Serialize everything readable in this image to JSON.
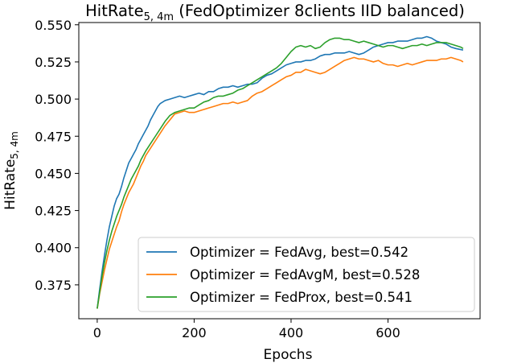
{
  "chart_data": {
    "type": "line",
    "title": {
      "prefix": "HitRate",
      "subscript": "5, 4m",
      "suffix": " (FedOptimizer 8clients IID balanced)"
    },
    "xlabel": "Epochs",
    "ylabel": {
      "base": "HitRate",
      "subscript": "5, 4m"
    },
    "xlim": [
      -38,
      790
    ],
    "ylim": [
      0.3522,
      0.5515
    ],
    "xticks": [
      0,
      200,
      400,
      600
    ],
    "xtick_labels": [
      "0",
      "200",
      "400",
      "600"
    ],
    "yticks": [
      0.375,
      0.4,
      0.425,
      0.45,
      0.475,
      0.5,
      0.525,
      0.55
    ],
    "ytick_labels": [
      "0.375",
      "0.400",
      "0.425",
      "0.450",
      "0.475",
      "0.500",
      "0.525",
      "0.550"
    ],
    "grid": false,
    "legend_position": "lower-right",
    "series": [
      {
        "name": "Optimizer = FedAvg, best=0.542",
        "color": "#1f77b4",
        "points": [
          [
            0,
            0.359
          ],
          [
            5,
            0.372
          ],
          [
            10,
            0.384
          ],
          [
            15,
            0.395
          ],
          [
            20,
            0.405
          ],
          [
            25,
            0.414
          ],
          [
            30,
            0.421
          ],
          [
            35,
            0.428
          ],
          [
            40,
            0.433
          ],
          [
            45,
            0.436
          ],
          [
            50,
            0.441
          ],
          [
            55,
            0.447
          ],
          [
            60,
            0.452
          ],
          [
            65,
            0.457
          ],
          [
            70,
            0.46
          ],
          [
            75,
            0.463
          ],
          [
            80,
            0.466
          ],
          [
            85,
            0.47
          ],
          [
            90,
            0.473
          ],
          [
            95,
            0.476
          ],
          [
            100,
            0.479
          ],
          [
            105,
            0.482
          ],
          [
            110,
            0.486
          ],
          [
            115,
            0.489
          ],
          [
            120,
            0.492
          ],
          [
            125,
            0.495
          ],
          [
            130,
            0.497
          ],
          [
            135,
            0.498
          ],
          [
            140,
            0.499
          ],
          [
            150,
            0.5
          ],
          [
            160,
            0.501
          ],
          [
            170,
            0.502
          ],
          [
            180,
            0.501
          ],
          [
            190,
            0.502
          ],
          [
            200,
            0.503
          ],
          [
            210,
            0.504
          ],
          [
            220,
            0.503
          ],
          [
            230,
            0.505
          ],
          [
            240,
            0.505
          ],
          [
            250,
            0.507
          ],
          [
            260,
            0.508
          ],
          [
            270,
            0.508
          ],
          [
            280,
            0.509
          ],
          [
            290,
            0.508
          ],
          [
            300,
            0.509
          ],
          [
            310,
            0.51
          ],
          [
            320,
            0.51
          ],
          [
            330,
            0.511
          ],
          [
            340,
            0.514
          ],
          [
            350,
            0.516
          ],
          [
            360,
            0.517
          ],
          [
            370,
            0.519
          ],
          [
            380,
            0.521
          ],
          [
            390,
            0.523
          ],
          [
            400,
            0.524
          ],
          [
            410,
            0.525
          ],
          [
            420,
            0.525
          ],
          [
            430,
            0.526
          ],
          [
            440,
            0.526
          ],
          [
            450,
            0.527
          ],
          [
            460,
            0.529
          ],
          [
            470,
            0.53
          ],
          [
            480,
            0.53
          ],
          [
            490,
            0.531
          ],
          [
            500,
            0.531
          ],
          [
            510,
            0.531
          ],
          [
            520,
            0.532
          ],
          [
            530,
            0.531
          ],
          [
            540,
            0.53
          ],
          [
            550,
            0.531
          ],
          [
            560,
            0.533
          ],
          [
            570,
            0.535
          ],
          [
            580,
            0.536
          ],
          [
            590,
            0.537
          ],
          [
            600,
            0.538
          ],
          [
            610,
            0.538
          ],
          [
            620,
            0.539
          ],
          [
            630,
            0.539
          ],
          [
            640,
            0.539
          ],
          [
            650,
            0.54
          ],
          [
            660,
            0.541
          ],
          [
            670,
            0.541
          ],
          [
            680,
            0.542
          ],
          [
            690,
            0.541
          ],
          [
            700,
            0.539
          ],
          [
            710,
            0.538
          ],
          [
            720,
            0.537
          ],
          [
            730,
            0.535
          ],
          [
            740,
            0.534
          ],
          [
            755,
            0.533
          ]
        ]
      },
      {
        "name": "Optimizer = FedAvgM, best=0.528",
        "color": "#ff7f0e",
        "points": [
          [
            0,
            0.359
          ],
          [
            5,
            0.369
          ],
          [
            10,
            0.377
          ],
          [
            15,
            0.385
          ],
          [
            20,
            0.392
          ],
          [
            25,
            0.399
          ],
          [
            30,
            0.404
          ],
          [
            35,
            0.409
          ],
          [
            40,
            0.414
          ],
          [
            45,
            0.418
          ],
          [
            50,
            0.424
          ],
          [
            55,
            0.429
          ],
          [
            60,
            0.433
          ],
          [
            65,
            0.437
          ],
          [
            70,
            0.44
          ],
          [
            75,
            0.443
          ],
          [
            80,
            0.447
          ],
          [
            85,
            0.451
          ],
          [
            90,
            0.455
          ],
          [
            95,
            0.458
          ],
          [
            100,
            0.462
          ],
          [
            110,
            0.467
          ],
          [
            120,
            0.472
          ],
          [
            130,
            0.477
          ],
          [
            140,
            0.482
          ],
          [
            150,
            0.486
          ],
          [
            160,
            0.49
          ],
          [
            170,
            0.491
          ],
          [
            180,
            0.492
          ],
          [
            190,
            0.491
          ],
          [
            200,
            0.491
          ],
          [
            210,
            0.492
          ],
          [
            220,
            0.493
          ],
          [
            230,
            0.494
          ],
          [
            240,
            0.495
          ],
          [
            250,
            0.496
          ],
          [
            260,
            0.497
          ],
          [
            270,
            0.497
          ],
          [
            280,
            0.498
          ],
          [
            290,
            0.497
          ],
          [
            300,
            0.498
          ],
          [
            310,
            0.499
          ],
          [
            320,
            0.502
          ],
          [
            330,
            0.504
          ],
          [
            340,
            0.505
          ],
          [
            350,
            0.507
          ],
          [
            360,
            0.509
          ],
          [
            370,
            0.511
          ],
          [
            380,
            0.513
          ],
          [
            390,
            0.515
          ],
          [
            400,
            0.516
          ],
          [
            410,
            0.518
          ],
          [
            420,
            0.518
          ],
          [
            430,
            0.52
          ],
          [
            440,
            0.519
          ],
          [
            450,
            0.518
          ],
          [
            460,
            0.517
          ],
          [
            470,
            0.518
          ],
          [
            480,
            0.52
          ],
          [
            490,
            0.522
          ],
          [
            500,
            0.524
          ],
          [
            510,
            0.526
          ],
          [
            520,
            0.527
          ],
          [
            530,
            0.528
          ],
          [
            540,
            0.527
          ],
          [
            550,
            0.527
          ],
          [
            560,
            0.526
          ],
          [
            570,
            0.525
          ],
          [
            580,
            0.526
          ],
          [
            590,
            0.524
          ],
          [
            600,
            0.523
          ],
          [
            610,
            0.523
          ],
          [
            620,
            0.522
          ],
          [
            630,
            0.523
          ],
          [
            640,
            0.524
          ],
          [
            650,
            0.523
          ],
          [
            660,
            0.524
          ],
          [
            670,
            0.525
          ],
          [
            680,
            0.526
          ],
          [
            690,
            0.526
          ],
          [
            700,
            0.526
          ],
          [
            710,
            0.527
          ],
          [
            720,
            0.527
          ],
          [
            730,
            0.528
          ],
          [
            740,
            0.527
          ],
          [
            750,
            0.526
          ],
          [
            755,
            0.525
          ]
        ]
      },
      {
        "name": "Optimizer = FedProx, best=0.541",
        "color": "#2ca02c",
        "points": [
          [
            0,
            0.359
          ],
          [
            5,
            0.37
          ],
          [
            10,
            0.381
          ],
          [
            15,
            0.39
          ],
          [
            20,
            0.398
          ],
          [
            25,
            0.405
          ],
          [
            30,
            0.411
          ],
          [
            35,
            0.416
          ],
          [
            40,
            0.421
          ],
          [
            45,
            0.425
          ],
          [
            50,
            0.429
          ],
          [
            55,
            0.434
          ],
          [
            60,
            0.438
          ],
          [
            65,
            0.442
          ],
          [
            70,
            0.446
          ],
          [
            75,
            0.449
          ],
          [
            80,
            0.452
          ],
          [
            85,
            0.455
          ],
          [
            90,
            0.459
          ],
          [
            95,
            0.462
          ],
          [
            100,
            0.465
          ],
          [
            110,
            0.47
          ],
          [
            120,
            0.475
          ],
          [
            130,
            0.48
          ],
          [
            140,
            0.485
          ],
          [
            150,
            0.489
          ],
          [
            160,
            0.491
          ],
          [
            170,
            0.492
          ],
          [
            180,
            0.493
          ],
          [
            190,
            0.494
          ],
          [
            200,
            0.494
          ],
          [
            210,
            0.496
          ],
          [
            220,
            0.498
          ],
          [
            230,
            0.499
          ],
          [
            240,
            0.501
          ],
          [
            250,
            0.502
          ],
          [
            260,
            0.502
          ],
          [
            270,
            0.503
          ],
          [
            280,
            0.504
          ],
          [
            290,
            0.506
          ],
          [
            300,
            0.507
          ],
          [
            310,
            0.509
          ],
          [
            320,
            0.511
          ],
          [
            330,
            0.513
          ],
          [
            340,
            0.515
          ],
          [
            350,
            0.517
          ],
          [
            360,
            0.519
          ],
          [
            370,
            0.521
          ],
          [
            380,
            0.524
          ],
          [
            390,
            0.528
          ],
          [
            400,
            0.532
          ],
          [
            410,
            0.535
          ],
          [
            420,
            0.536
          ],
          [
            430,
            0.535
          ],
          [
            440,
            0.536
          ],
          [
            450,
            0.534
          ],
          [
            460,
            0.535
          ],
          [
            470,
            0.538
          ],
          [
            480,
            0.54
          ],
          [
            490,
            0.541
          ],
          [
            500,
            0.541
          ],
          [
            510,
            0.54
          ],
          [
            520,
            0.54
          ],
          [
            530,
            0.539
          ],
          [
            540,
            0.538
          ],
          [
            550,
            0.539
          ],
          [
            560,
            0.538
          ],
          [
            570,
            0.537
          ],
          [
            580,
            0.536
          ],
          [
            590,
            0.535
          ],
          [
            600,
            0.536
          ],
          [
            610,
            0.536
          ],
          [
            620,
            0.535
          ],
          [
            630,
            0.534
          ],
          [
            640,
            0.535
          ],
          [
            650,
            0.536
          ],
          [
            660,
            0.536
          ],
          [
            670,
            0.537
          ],
          [
            680,
            0.536
          ],
          [
            690,
            0.537
          ],
          [
            700,
            0.538
          ],
          [
            710,
            0.538
          ],
          [
            720,
            0.538
          ],
          [
            730,
            0.537
          ],
          [
            740,
            0.536
          ],
          [
            750,
            0.535
          ],
          [
            755,
            0.534
          ]
        ]
      }
    ]
  }
}
